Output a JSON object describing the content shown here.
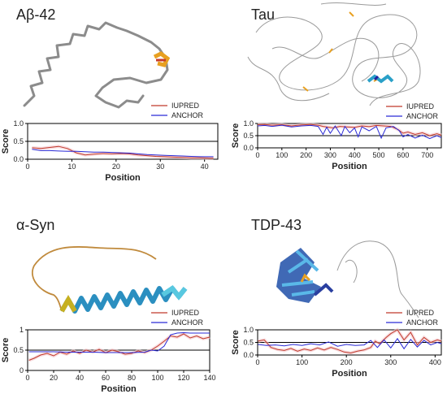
{
  "panels": [
    {
      "title": "Aβ-42"
    },
    {
      "title": "Tau"
    },
    {
      "title": "α-Syn"
    },
    {
      "title": "TDP-43"
    }
  ],
  "colors": {
    "iupred": "#c0392b",
    "anchor": "#2a2ad6",
    "threshold": "#000000",
    "shade": "#f4c6cc"
  },
  "chart_data": [
    {
      "type": "line",
      "panel": "Aβ-42",
      "xlabel": "Position",
      "ylabel": "Score",
      "xlim": [
        0,
        43
      ],
      "ylim": [
        0,
        1
      ],
      "xticks": [
        0,
        10,
        20,
        30,
        40
      ],
      "yticks": [
        0.0,
        0.5,
        1.0
      ],
      "ytick_labels": [
        "0.0",
        "0.5",
        "1.0"
      ],
      "threshold": 0.5,
      "legend_position": "top-right",
      "series": [
        {
          "name": "IUPRED",
          "x": [
            1,
            3,
            5,
            7,
            9,
            11,
            13,
            15,
            17,
            19,
            21,
            23,
            25,
            27,
            29,
            31,
            33,
            35,
            37,
            39,
            41,
            42
          ],
          "y": [
            0.32,
            0.3,
            0.33,
            0.36,
            0.3,
            0.18,
            0.12,
            0.14,
            0.16,
            0.15,
            0.16,
            0.15,
            0.12,
            0.1,
            0.08,
            0.07,
            0.06,
            0.05,
            0.04,
            0.04,
            0.03,
            0.03
          ]
        },
        {
          "name": "ANCHOR",
          "x": [
            1,
            3,
            5,
            7,
            9,
            11,
            13,
            15,
            17,
            19,
            21,
            23,
            25,
            27,
            29,
            31,
            33,
            35,
            37,
            39,
            41,
            42
          ],
          "y": [
            0.28,
            0.24,
            0.24,
            0.23,
            0.22,
            0.22,
            0.21,
            0.2,
            0.2,
            0.19,
            0.18,
            0.17,
            0.15,
            0.13,
            0.12,
            0.11,
            0.1,
            0.09,
            0.08,
            0.07,
            0.07,
            0.07
          ]
        }
      ]
    },
    {
      "type": "line",
      "panel": "Tau",
      "xlabel": "Position",
      "ylabel": "Score",
      "xlim": [
        0,
        758
      ],
      "ylim": [
        0,
        1
      ],
      "xticks": [
        0,
        100,
        200,
        300,
        400,
        500,
        600,
        700
      ],
      "yticks": [
        0.0,
        0.5,
        1.0
      ],
      "ytick_labels": [
        "0.0",
        "0.5",
        "1.0"
      ],
      "threshold": 0.5,
      "legend_position": "top-right",
      "series": [
        {
          "name": "IUPRED",
          "x": [
            0,
            30,
            60,
            100,
            140,
            180,
            220,
            250,
            270,
            290,
            310,
            340,
            370,
            400,
            430,
            460,
            490,
            520,
            550,
            580,
            600,
            620,
            650,
            680,
            710,
            740,
            758
          ],
          "y": [
            0.95,
            0.96,
            0.93,
            0.95,
            0.9,
            0.94,
            0.96,
            0.93,
            0.88,
            0.85,
            0.82,
            0.88,
            0.86,
            0.84,
            0.9,
            0.87,
            0.92,
            0.9,
            0.88,
            0.75,
            0.6,
            0.65,
            0.55,
            0.62,
            0.5,
            0.58,
            0.52
          ]
        },
        {
          "name": "ANCHOR",
          "x": [
            0,
            30,
            60,
            100,
            140,
            180,
            220,
            250,
            270,
            285,
            300,
            320,
            345,
            360,
            380,
            400,
            415,
            430,
            460,
            490,
            510,
            530,
            560,
            585,
            600,
            620,
            650,
            680,
            710,
            740,
            758
          ],
          "y": [
            0.9,
            0.92,
            0.88,
            0.93,
            0.86,
            0.9,
            0.92,
            0.88,
            0.55,
            0.85,
            0.6,
            0.9,
            0.5,
            0.88,
            0.62,
            0.82,
            0.45,
            0.86,
            0.7,
            0.88,
            0.4,
            0.82,
            0.88,
            0.7,
            0.45,
            0.55,
            0.4,
            0.52,
            0.38,
            0.5,
            0.42
          ]
        }
      ]
    },
    {
      "type": "line",
      "panel": "α-Syn",
      "xlabel": "Position",
      "ylabel": "Score",
      "xlim": [
        0,
        140
      ],
      "ylim": [
        0,
        1
      ],
      "xticks": [
        0,
        20,
        40,
        60,
        80,
        100,
        120,
        140
      ],
      "yticks": [
        0.0,
        0.5,
        1.0
      ],
      "ytick_labels": [
        "0",
        "0.5",
        "1"
      ],
      "threshold": 0.5,
      "legend_position": "top-right",
      "series": [
        {
          "name": "IUPRED",
          "x": [
            1,
            5,
            10,
            15,
            20,
            25,
            30,
            35,
            40,
            45,
            50,
            55,
            60,
            65,
            70,
            75,
            80,
            85,
            90,
            95,
            100,
            105,
            110,
            115,
            120,
            125,
            130,
            135,
            140
          ],
          "y": [
            0.25,
            0.3,
            0.38,
            0.42,
            0.36,
            0.45,
            0.4,
            0.48,
            0.42,
            0.5,
            0.45,
            0.52,
            0.44,
            0.5,
            0.46,
            0.4,
            0.42,
            0.48,
            0.44,
            0.5,
            0.6,
            0.72,
            0.85,
            0.82,
            0.9,
            0.8,
            0.85,
            0.78,
            0.82
          ]
        },
        {
          "name": "ANCHOR",
          "x": [
            1,
            10,
            20,
            30,
            40,
            50,
            60,
            70,
            80,
            90,
            95,
            100,
            105,
            110,
            115,
            120,
            125,
            130,
            135,
            140
          ],
          "y": [
            0.46,
            0.46,
            0.46,
            0.45,
            0.45,
            0.45,
            0.44,
            0.44,
            0.44,
            0.45,
            0.5,
            0.48,
            0.6,
            0.88,
            0.92,
            0.93,
            0.92,
            0.92,
            0.92,
            0.92
          ]
        }
      ]
    },
    {
      "type": "line",
      "panel": "TDP-43",
      "xlabel": "Position",
      "ylabel": "Score",
      "xlim": [
        0,
        414
      ],
      "ylim": [
        0,
        1
      ],
      "xticks": [
        0,
        100,
        200,
        300,
        400
      ],
      "yticks": [
        0.0,
        0.5,
        1.0
      ],
      "ytick_labels": [
        "0.0",
        "0.5",
        "1.0"
      ],
      "threshold": 0.5,
      "legend_position": "top-right",
      "series": [
        {
          "name": "IUPRED",
          "x": [
            1,
            15,
            30,
            45,
            60,
            75,
            90,
            105,
            120,
            135,
            150,
            165,
            180,
            195,
            210,
            225,
            240,
            255,
            265,
            275,
            290,
            300,
            315,
            330,
            345,
            360,
            375,
            390,
            405,
            414
          ],
          "y": [
            0.55,
            0.6,
            0.3,
            0.22,
            0.18,
            0.26,
            0.15,
            0.24,
            0.18,
            0.28,
            0.2,
            0.3,
            0.22,
            0.12,
            0.08,
            0.15,
            0.2,
            0.3,
            0.55,
            0.45,
            0.7,
            0.85,
            1.0,
            0.6,
            0.9,
            0.4,
            0.7,
            0.5,
            0.6,
            0.55
          ]
        },
        {
          "name": "ANCHOR",
          "x": [
            1,
            20,
            40,
            60,
            80,
            100,
            120,
            140,
            160,
            180,
            200,
            220,
            240,
            255,
            270,
            285,
            300,
            315,
            330,
            345,
            360,
            375,
            390,
            405,
            414
          ],
          "y": [
            0.42,
            0.38,
            0.4,
            0.36,
            0.42,
            0.38,
            0.45,
            0.4,
            0.52,
            0.35,
            0.42,
            0.38,
            0.4,
            0.58,
            0.3,
            0.6,
            0.28,
            0.65,
            0.25,
            0.62,
            0.32,
            0.58,
            0.4,
            0.5,
            0.45
          ]
        }
      ]
    }
  ]
}
